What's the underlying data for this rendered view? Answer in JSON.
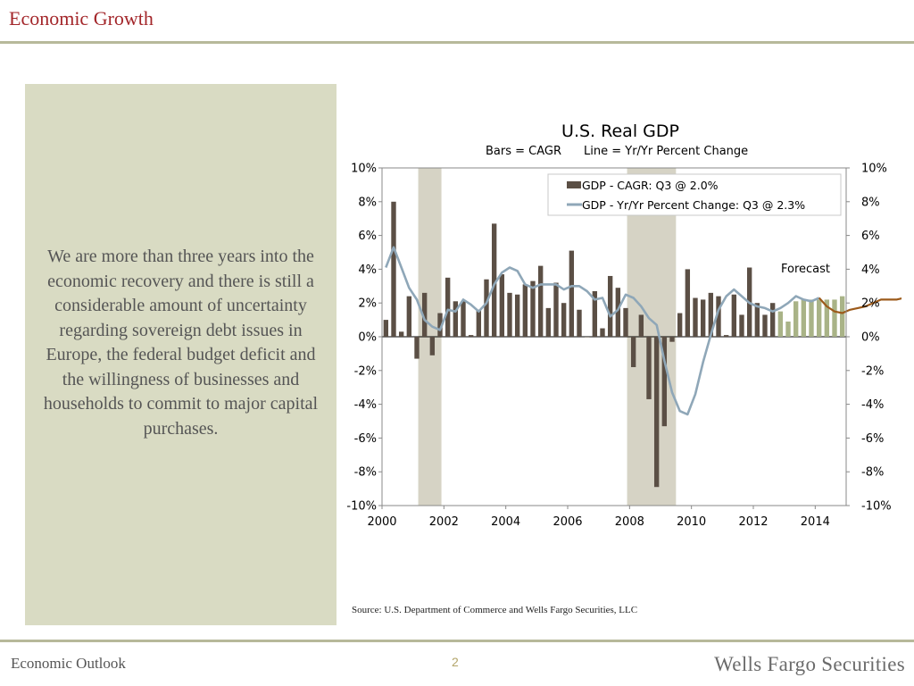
{
  "header": {
    "title": "Economic Growth"
  },
  "sidebar": {
    "text": "We are more than three years into the economic recovery and there is still a considerable amount of uncertainty regarding sovereign debt issues in Europe, the federal budget deficit and the willingness of businesses and households to commit to major capital purchases."
  },
  "source_note": "Source: U.S. Department of Commerce and Wells Fargo Securities, LLC",
  "footer": {
    "left": "Economic Outlook",
    "page": "2",
    "brand": "Wells Fargo Securities"
  },
  "colors": {
    "title_red": "#a3262a",
    "panel": "#d9dbc3",
    "bar_actual": "#5b4f45",
    "bar_forecast": "#a9b387",
    "line_actual": "#8fa7b8",
    "line_forecast": "#9c5a1a",
    "recession": "#d6d3c5"
  },
  "chart_data": {
    "type": "bar",
    "title": "U.S. Real GDP",
    "subtitle_left": "Bars = CAGR",
    "subtitle_right": "Line = Yr/Yr Percent Change",
    "x_ticks": [
      "2000",
      "2002",
      "2004",
      "2006",
      "2008",
      "2010",
      "2012",
      "2014"
    ],
    "y_ticks_left": [
      "10%",
      "8%",
      "6%",
      "4%",
      "2%",
      "0%",
      "-2%",
      "-4%",
      "-6%",
      "-8%",
      "-10%"
    ],
    "y_ticks_right": [
      "10%",
      "8%",
      "6%",
      "4%",
      "2%",
      "0%",
      "-2%",
      "-4%",
      "-6%",
      "-8%",
      "-10%"
    ],
    "ylim": [
      -10,
      10
    ],
    "x_start": 2000.0,
    "x_end": 2015.0,
    "legend": [
      {
        "label": "GDP - CAGR: Q3 @ 2.0%",
        "kind": "bar"
      },
      {
        "label": "GDP - Yr/Yr Percent Change: Q3 @ 2.3%",
        "kind": "line"
      }
    ],
    "annotation": "Forecast",
    "recessions": [
      [
        2001.17,
        2001.92
      ],
      [
        2007.92,
        2009.5
      ]
    ],
    "bar_series": {
      "name": "GDP - CAGR: Q3 @ 2.0%",
      "values": [
        1.0,
        8.0,
        0.3,
        2.4,
        -1.3,
        2.6,
        -1.1,
        1.4,
        3.5,
        2.1,
        2.1,
        0.1,
        1.6,
        3.4,
        6.7,
        3.7,
        2.6,
        2.5,
        3.1,
        3.3,
        4.2,
        1.7,
        3.2,
        2.0,
        5.1,
        1.6,
        0.0,
        2.7,
        0.5,
        3.6,
        2.9,
        1.7,
        -1.8,
        1.3,
        -3.7,
        -8.9,
        -5.3,
        -0.3,
        1.4,
        4.0,
        2.3,
        2.2,
        2.6,
        2.4,
        0.1,
        2.5,
        1.3,
        4.1,
        2.0,
        1.3,
        2.0
      ],
      "forecast_values": [
        1.5,
        0.9,
        2.1,
        2.2,
        2.2,
        2.2,
        2.2,
        2.2,
        2.4
      ]
    },
    "line_series": {
      "name": "GDP - Yr/Yr Percent Change: Q3 @ 2.3%",
      "values": [
        4.1,
        5.3,
        4.1,
        2.9,
        2.2,
        1.0,
        0.6,
        0.4,
        1.6,
        1.5,
        2.2,
        1.9,
        1.5,
        2.0,
        3.1,
        3.8,
        4.1,
        3.9,
        3.1,
        2.9,
        3.1,
        3.1,
        3.1,
        2.8,
        3.0,
        3.0,
        2.7,
        2.2,
        2.3,
        1.2,
        1.6,
        2.5,
        2.3,
        1.8,
        1.1,
        0.7,
        -1.4,
        -3.3,
        -4.4,
        -4.6,
        -3.4,
        -1.5,
        0.1,
        1.6,
        2.4,
        2.8,
        2.4,
        2.0,
        1.8,
        1.7,
        1.5,
        1.7,
        2.0,
        2.4,
        2.2,
        2.1,
        2.3
      ],
      "forecast_values": [
        2.3,
        1.8,
        1.5,
        1.4,
        1.6,
        1.7,
        1.8,
        2.0,
        2.2,
        2.2,
        2.2,
        2.3,
        2.3
      ]
    }
  }
}
